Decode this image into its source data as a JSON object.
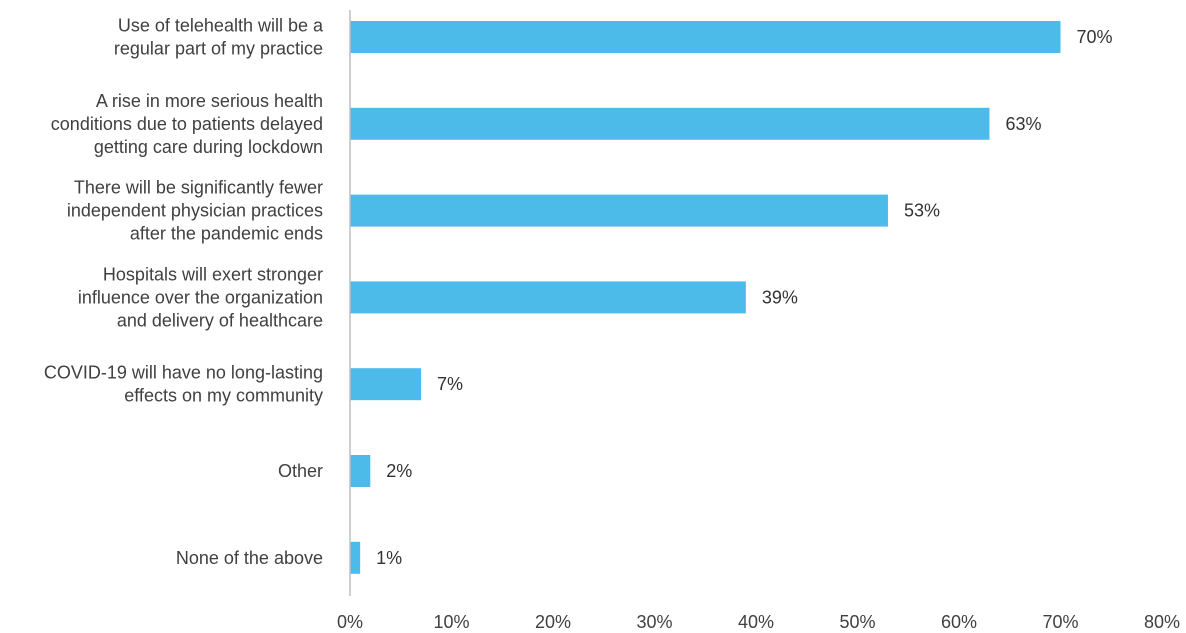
{
  "chart_data": {
    "type": "bar",
    "orientation": "horizontal",
    "categories": [
      [
        "Use of telehealth will be a",
        "regular part of my practice"
      ],
      [
        "A rise in more serious health",
        "conditions due to patients delayed",
        "getting care during lockdown"
      ],
      [
        "There will be significantly fewer",
        "independent physician practices",
        "after the pandemic ends"
      ],
      [
        "Hospitals will exert stronger",
        "influence over the organization",
        "and delivery of healthcare"
      ],
      [
        "COVID-19 will have no long-lasting",
        "effects on my community"
      ],
      [
        "Other"
      ],
      [
        "None of the above"
      ]
    ],
    "values": [
      70,
      63,
      53,
      39,
      7,
      2,
      1
    ],
    "value_labels": [
      "70%",
      "63%",
      "53%",
      "39%",
      "7%",
      "2%",
      "1%"
    ],
    "xlim": [
      0,
      80
    ],
    "x_ticks": [
      0,
      10,
      20,
      30,
      40,
      50,
      60,
      70,
      80
    ],
    "x_tick_labels": [
      "0%",
      "10%",
      "20%",
      "30%",
      "40%",
      "50%",
      "60%",
      "70%",
      "80%"
    ],
    "grid": false,
    "legend": "none",
    "bar_color": "#4DBBEA",
    "axis_color": "#BFBFBF"
  }
}
